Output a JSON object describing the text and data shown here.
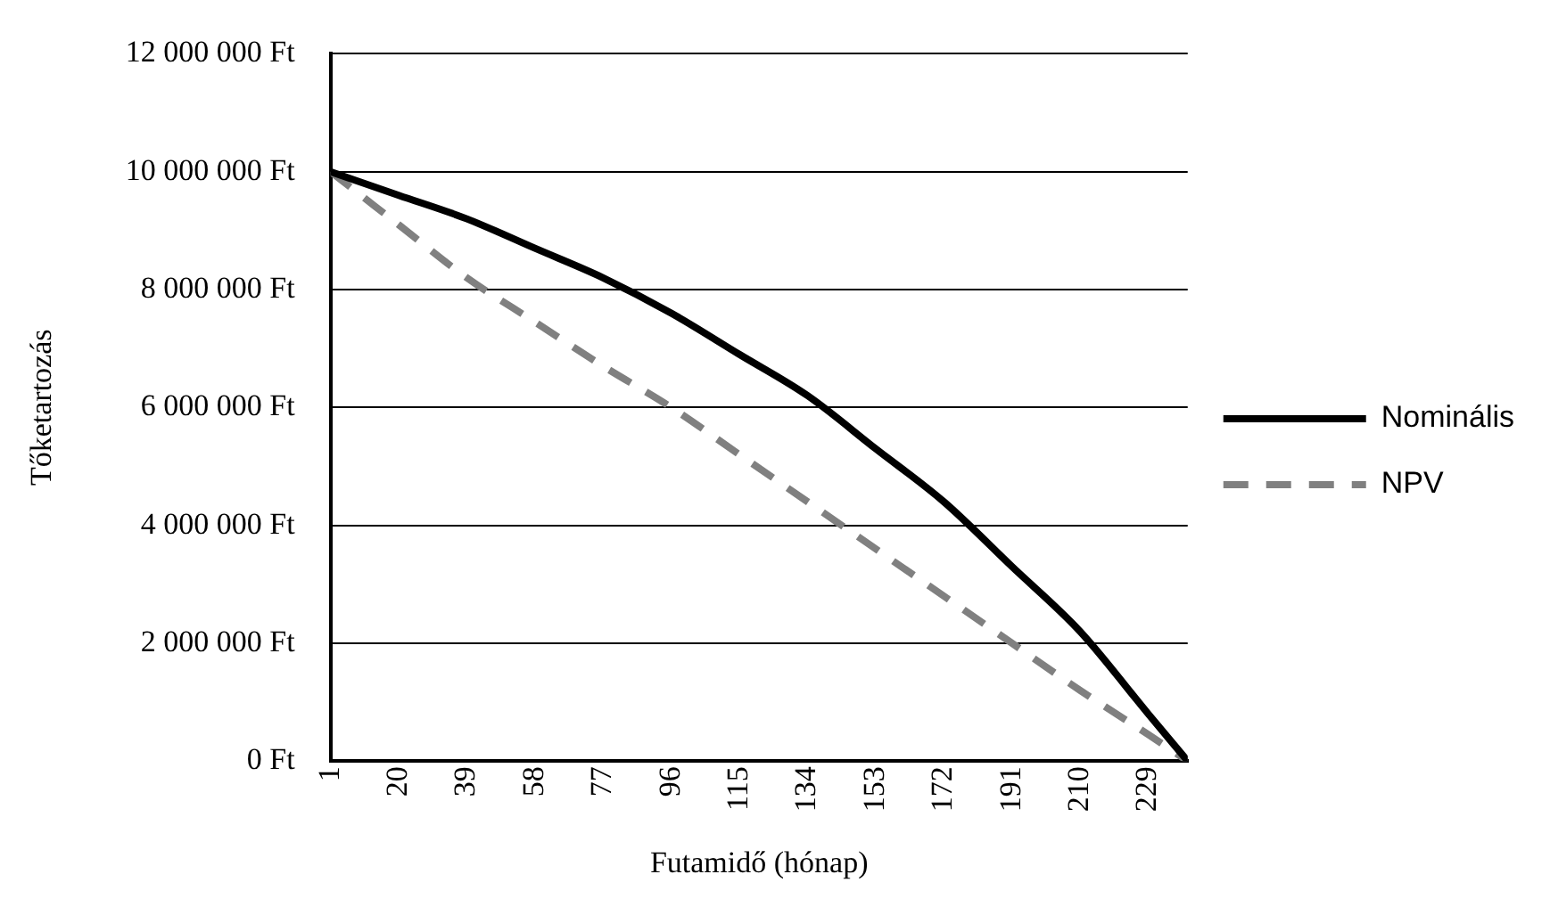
{
  "chart_data": {
    "type": "line",
    "xlabel": "Futamidő (hónap)",
    "ylabel": "Tőketartozás",
    "xlim": [
      1,
      240
    ],
    "xticks": [
      1,
      20,
      39,
      58,
      77,
      96,
      115,
      134,
      153,
      172,
      191,
      210,
      229
    ],
    "ylim": [
      0,
      12000000
    ],
    "yticks": [
      {
        "value": 0,
        "label": "0 Ft"
      },
      {
        "value": 2000000,
        "label": "2 000 000 Ft"
      },
      {
        "value": 4000000,
        "label": "4 000 000 Ft"
      },
      {
        "value": 6000000,
        "label": "6 000 000 Ft"
      },
      {
        "value": 8000000,
        "label": "8 000 000 Ft"
      },
      {
        "value": 10000000,
        "label": "10 000 000 Ft"
      },
      {
        "value": 12000000,
        "label": "12 000 000 Ft"
      }
    ],
    "x": [
      1,
      20,
      39,
      58,
      77,
      96,
      115,
      134,
      153,
      172,
      191,
      210,
      229,
      240
    ],
    "series": [
      {
        "name": "Nominális",
        "color": "#000000",
        "line_style": "solid",
        "values": [
          10000000,
          9600000,
          9200000,
          8700000,
          8200000,
          7600000,
          6900000,
          6200000,
          5300000,
          4400000,
          3300000,
          2200000,
          800000,
          0
        ]
      },
      {
        "name": "NPV",
        "color": "#808080",
        "line_style": "dashed",
        "values": [
          10000000,
          9100000,
          8200000,
          7450000,
          6700000,
          6000000,
          5200000,
          4400000,
          3600000,
          2800000,
          2000000,
          1200000,
          450000,
          0
        ]
      }
    ],
    "grid": "y",
    "legend": "right",
    "marker": "none"
  }
}
